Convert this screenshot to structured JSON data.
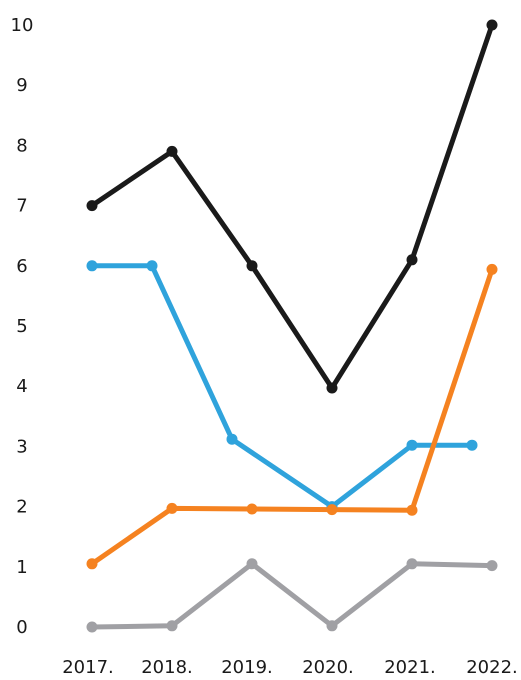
{
  "chart_data": {
    "type": "line",
    "title": "",
    "xlabel": "",
    "ylabel": "",
    "categories": [
      "2017.",
      "2018.",
      "2019.",
      "2020.",
      "2021.",
      "2022."
    ],
    "ylim": [
      0,
      10
    ],
    "yticks": [
      0,
      1,
      2,
      3,
      4,
      5,
      6,
      7,
      8,
      9,
      10
    ],
    "grid": false,
    "legend": "none",
    "series": [
      {
        "color": "#1a1a1a",
        "points": [
          {
            "x": 2017,
            "y": 7.0
          },
          {
            "x": 2018,
            "y": 7.9
          },
          {
            "x": 2019,
            "y": 6.0
          },
          {
            "x": 2020,
            "y": 3.97
          },
          {
            "x": 2021,
            "y": 6.1
          },
          {
            "x": 2022,
            "y": 10.0
          }
        ]
      },
      {
        "color": "#2fa3dc",
        "points": [
          {
            "x": 2017,
            "y": 6.0
          },
          {
            "x": 2017.75,
            "y": 6.0
          },
          {
            "x": 2018.75,
            "y": 3.12
          },
          {
            "x": 2020,
            "y": 2.0
          },
          {
            "x": 2021,
            "y": 3.02
          },
          {
            "x": 2021.75,
            "y": 3.02
          }
        ]
      },
      {
        "color": "#f58220",
        "points": [
          {
            "x": 2017,
            "y": 1.05
          },
          {
            "x": 2018,
            "y": 1.97
          },
          {
            "x": 2019,
            "y": 1.96
          },
          {
            "x": 2020,
            "y": 1.95
          },
          {
            "x": 2021,
            "y": 1.94
          },
          {
            "x": 2022,
            "y": 5.94
          }
        ]
      },
      {
        "color": "#a0a0a4",
        "points": [
          {
            "x": 2017,
            "y": 0.0
          },
          {
            "x": 2018,
            "y": 0.02
          },
          {
            "x": 2019,
            "y": 1.05
          },
          {
            "x": 2020,
            "y": 0.02
          },
          {
            "x": 2021,
            "y": 1.05
          },
          {
            "x": 2022,
            "y": 1.02
          }
        ]
      }
    ]
  }
}
